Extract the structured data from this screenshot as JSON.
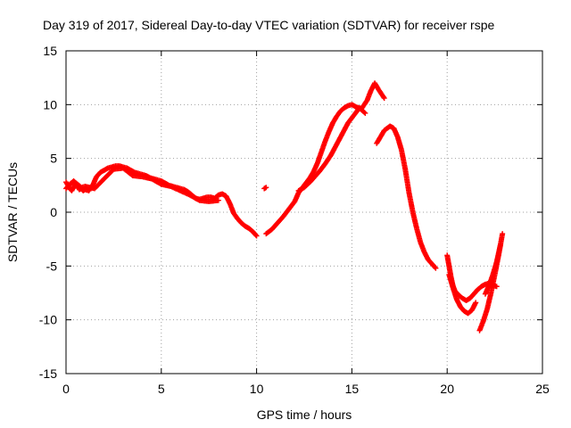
{
  "chart_data": {
    "type": "scatter",
    "title": "Day 319 of 2017, Sidereal Day-to-day VTEC variation (SDTVAR) for receiver rspe",
    "xlabel": "GPS time / hours",
    "ylabel": "SDTVAR / TECUs",
    "xlim": [
      0,
      25
    ],
    "ylim": [
      -15,
      15
    ],
    "xticks": [
      0,
      5,
      10,
      15,
      20,
      25
    ],
    "yticks": [
      -15,
      -10,
      -5,
      0,
      5,
      10,
      15
    ],
    "xtick_labels": [
      "0",
      "5",
      "10",
      "15",
      "20",
      "25"
    ],
    "ytick_labels": [
      "-15",
      "-10",
      "-5",
      "0",
      "5",
      "10",
      "15"
    ],
    "grid": true,
    "marker": "+",
    "color": "#ff0000",
    "series": [
      {
        "name": "segment-1",
        "x": [
          0.0,
          0.1,
          0.2,
          0.3,
          0.4,
          0.5,
          0.6,
          0.7,
          0.8,
          0.9,
          1.0,
          1.2,
          1.4,
          1.6,
          1.8,
          2.0,
          2.2,
          2.4,
          2.6,
          2.8,
          3.0,
          3.2,
          3.4,
          3.6,
          3.8,
          4.0,
          4.2,
          4.4,
          4.6,
          4.8,
          5.0,
          5.2,
          5.4,
          5.6,
          5.8,
          6.0,
          6.2,
          6.4,
          6.6,
          6.8,
          7.0,
          7.2,
          7.4,
          7.6,
          7.8,
          8.0,
          8.2,
          8.4,
          8.6,
          8.8,
          9.0,
          9.2,
          9.4,
          9.6,
          9.8,
          10.0
        ],
        "y": [
          2.8,
          2.5,
          2.2,
          2.0,
          2.3,
          2.7,
          2.4,
          2.1,
          2.2,
          2.0,
          2.1,
          2.0,
          2.5,
          3.3,
          3.7,
          3.9,
          4.1,
          4.2,
          4.3,
          4.3,
          4.2,
          4.1,
          3.9,
          3.7,
          3.6,
          3.5,
          3.4,
          3.2,
          3.1,
          3.0,
          2.9,
          2.7,
          2.5,
          2.4,
          2.3,
          2.2,
          2.1,
          1.9,
          1.6,
          1.3,
          1.2,
          1.3,
          1.4,
          1.4,
          1.3,
          1.6,
          1.7,
          1.5,
          0.8,
          -0.1,
          -0.6,
          -1.0,
          -1.3,
          -1.5,
          -1.8,
          -2.2
        ]
      },
      {
        "name": "segment-2",
        "x": [
          0.0,
          0.2,
          0.4,
          0.6,
          0.8,
          1.0,
          1.5,
          2.5,
          3.0,
          3.5,
          4.0,
          4.5,
          5.0,
          5.5,
          6.0,
          6.5,
          7.0,
          7.5,
          8.0
        ],
        "y": [
          2.2,
          2.6,
          2.9,
          2.6,
          2.3,
          2.4,
          2.2,
          4.0,
          4.1,
          3.4,
          3.3,
          3.1,
          2.6,
          2.4,
          2.0,
          1.6,
          1.1,
          1.0,
          1.1
        ]
      },
      {
        "name": "segment-3",
        "x": [
          10.4,
          10.5
        ],
        "y": [
          2.2,
          2.3
        ]
      },
      {
        "name": "segment-4",
        "x": [
          10.5,
          10.8,
          11.1,
          11.4,
          11.7,
          12.0,
          12.2,
          12.5,
          12.8,
          13.0,
          13.2,
          13.4,
          13.6,
          13.8,
          14.0,
          14.2,
          14.4,
          14.6,
          14.8,
          15.0,
          15.2,
          15.5,
          15.8,
          16.0,
          16.2,
          16.4,
          16.7
        ],
        "y": [
          -2.0,
          -1.6,
          -1.0,
          -0.4,
          0.3,
          1.0,
          1.8,
          2.5,
          3.2,
          3.8,
          4.6,
          5.6,
          6.6,
          7.5,
          8.3,
          8.9,
          9.4,
          9.7,
          9.9,
          10.0,
          9.8,
          9.6,
          10.4,
          11.3,
          12.0,
          11.4,
          10.6
        ]
      },
      {
        "name": "segment-5",
        "x": [
          12.2,
          12.5,
          12.8,
          13.0,
          13.3,
          13.6,
          13.9,
          14.2,
          14.5,
          14.8,
          15.1,
          15.4,
          15.7
        ],
        "y": [
          2.0,
          2.3,
          2.8,
          3.2,
          3.8,
          4.5,
          5.3,
          6.3,
          7.3,
          8.3,
          9.0,
          9.7,
          9.2
        ]
      },
      {
        "name": "segment-6",
        "x": [
          16.3,
          16.5,
          16.7,
          17.0,
          17.2,
          17.4,
          17.6,
          17.8,
          18.0,
          18.2,
          18.4,
          18.6,
          18.8,
          19.0,
          19.2,
          19.4
        ],
        "y": [
          6.4,
          7.0,
          7.6,
          8.0,
          7.8,
          7.0,
          5.8,
          4.0,
          1.8,
          0.0,
          -1.5,
          -2.8,
          -3.7,
          -4.4,
          -4.8,
          -5.2
        ]
      },
      {
        "name": "segment-7",
        "x": [
          20.0,
          20.1,
          20.2,
          20.3,
          20.4,
          20.6,
          20.8,
          21.0,
          21.2,
          21.4,
          21.6,
          21.8,
          22.0,
          22.2,
          22.4,
          22.6
        ],
        "y": [
          -4.0,
          -5.0,
          -6.0,
          -6.8,
          -7.3,
          -7.7,
          -8.0,
          -8.2,
          -8.0,
          -7.6,
          -7.2,
          -6.9,
          -6.7,
          -6.6,
          -6.8,
          -6.9
        ]
      },
      {
        "name": "segment-8",
        "x": [
          20.1,
          20.3,
          20.5,
          20.7,
          20.9,
          21.1,
          21.3,
          21.5
        ],
        "y": [
          -5.8,
          -7.0,
          -8.1,
          -8.8,
          -9.2,
          -9.4,
          -9.1,
          -8.4
        ]
      },
      {
        "name": "segment-9",
        "x": [
          21.7,
          21.9,
          22.1,
          22.3,
          22.5,
          22.7,
          22.9
        ],
        "y": [
          -11.0,
          -10.1,
          -9.0,
          -7.5,
          -5.8,
          -4.0,
          -2.0
        ]
      },
      {
        "name": "segment-10",
        "x": [
          22.0,
          22.2,
          22.4,
          22.6,
          22.8
        ],
        "y": [
          -7.6,
          -6.8,
          -5.8,
          -4.6,
          -3.0
        ]
      }
    ]
  }
}
